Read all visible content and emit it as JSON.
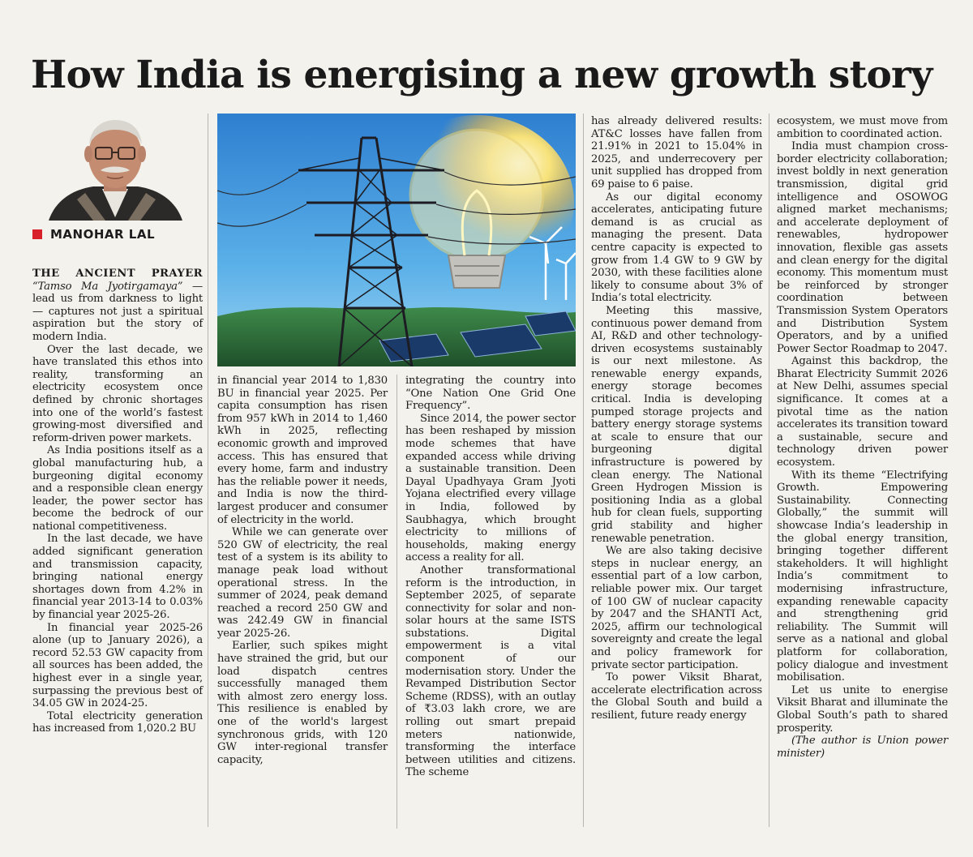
{
  "article": {
    "headline": "How India is energising a new growth story",
    "author": "MANOHAR LAL",
    "lead_cap": "THE ANCIENT PRAYER",
    "lead_quote": "“Tamso Ma Jyotirgamaya”",
    "lead_rest": " — lead us from darkness to light — captures not just a spiritual aspiration but the story of modern India.",
    "col1": [
      "Over the last decade, we have translated this ethos into reality, transforming an electricity ecosystem once defined by chronic shortages into one of the world’s fastest growing-most diversified and reform-driven power markets.",
      "As India positions itself as a global manufacturing hub, a burgeoning digital economy and a responsible clean energy leader, the power sector has become the bedrock of our national competitiveness.",
      "In the last decade, we have added significant generation and transmission capacity, bringing national energy shortages down from 4.2% in financial year 2013-14 to 0.03% by financial year 2025-26.",
      "In financial year 2025-26 alone (up to January 2026), a record 52.53 GW capacity from all sources has been added, the highest ever in a single year, surpassing the previous best of 34.05 GW in 2024-25.",
      "Total electricity generation has increased from 1,020.2 BU"
    ],
    "col2_start": "in financial year 2014 to 1,830 BU in financial year 2025. Per capita consumption has risen from 957 kWh in 2014 to 1,460 kWh in 2025, reflecting economic growth and improved access. This has ensured that every home, farm and industry has the reliable power it needs, and India is now the third-largest producer and consumer of electricity in the world.",
    "col2": [
      "While we can generate over 520 GW of electricity, the real test of a system is its ability to manage peak load without operational stress. In the summer of 2024, peak demand reached a record 250 GW and was 242.49 GW in financial year 2025-26.",
      "Earlier, such spikes might have strained the grid, but our load dispatch centres successfully managed them with almost zero energy loss. This resilience is enabled by one of the world's largest synchronous grids, with 120 GW inter-regional transfer capacity,"
    ],
    "col3_start": "integrating the country into “One Nation One Grid One Frequency”.",
    "col3": [
      "Since 2014, the power sector has been reshaped by mission mode schemes that have expanded access while driving a sustainable transition. Deen Dayal Upadhyaya Gram Jyoti Yojana electrified every village in India, followed by Saubhagya, which brought electricity to millions of households, making energy access a reality for all.",
      "Another transformational reform is the introduction, in September 2025, of separate connectivity for solar and non-solar hours at the same ISTS substations. Digital empowerment is a vital component of our modernisation story. Under the Revamped Distribution Sector Scheme (RDSS), with an outlay of ₹3.03 lakh crore, we are rolling out smart prepaid meters nationwide, transforming the interface between utilities and citizens. The scheme"
    ],
    "col4_start": "has already delivered results: AT&C losses have fallen from 21.91% in 2021 to 15.04% in 2025, and underrecovery per unit supplied has dropped from 69 paise to 6 paise.",
    "col4": [
      "As our digital economy accelerates, anticipating future demand is as crucial as managing the present. Data centre capacity is expected to grow from 1.4 GW to 9 GW by 2030, with these facilities alone likely to consume about 3% of India’s total electricity.",
      "Meeting this massive, continuous power demand from AI, R&D and other technology-driven ecosystems sustainably is our next milestone. As renewable energy expands, energy storage becomes critical. India is developing pumped storage projects and battery energy storage systems at scale to ensure that our burgeoning digital infrastructure is powered by clean energy. The National Green Hydrogen Mission is positioning India as a global hub for clean fuels, supporting grid stability and higher renewable penetration.",
      "We are also taking decisive steps in nuclear energy, an essential part of a low carbon, reliable power mix. Our target of 100 GW of nuclear capacity by 2047 and the SHANTI Act, 2025, affirm our technological sovereignty and create the legal and policy framework for private sector participation.",
      "To power Viksit Bharat, accelerate electrification across the Global South and build a resilient, future ready energy"
    ],
    "col5_start": "ecosystem, we must move from ambition to coordinated action.",
    "col5": [
      "India must champion cross-border electricity collaboration; invest boldly in next generation transmission, digital grid intelligence and OSOWOG aligned market mechanisms; and accelerate deployment of renewables, hydropower innovation, flexible gas assets and clean energy for the digital economy. This momentum must be reinforced by stronger coordination between Transmission System Operators and Distribution System Operators, and by a unified Power Sector Roadmap to 2047.",
      "Against this backdrop, the Bharat Electricity Summit 2026 at New Delhi, assumes special significance. It comes at a pivotal time as the nation accelerates its transition toward a sustainable, secure and technology driven power ecosystem.",
      "With its theme “Electrifying Growth. Empowering Sustainability. Connecting Globally,” the summit will showcase India’s leadership in the global energy transition, bringing together different stakeholders. It will highlight India’s commitment to modernising infrastructure, expanding renewable capacity and strengthening grid reliability. The Summit will serve as a national and global platform for collaboration, policy dialogue and investment mobilisation.",
      "Let us unite to energise Viksit Bharat and illuminate the Global South’s path to shared prosperity."
    ],
    "author_note": "(The author is Union power minister)"
  },
  "colors": {
    "accent_red": "#d8202a",
    "paper": "#f4f2ec",
    "ink": "#1c1c1c"
  }
}
